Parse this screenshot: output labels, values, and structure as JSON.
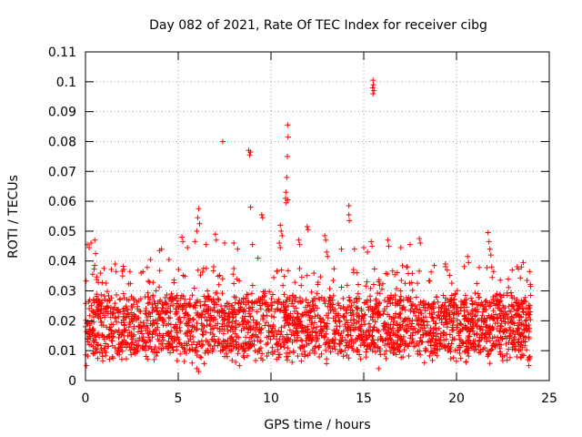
{
  "chart_data": {
    "type": "scatter",
    "title": "Day 082 of 2021, Rate Of TEC Index for receiver cibg",
    "xlabel": "GPS time / hours",
    "ylabel": "ROTI / TECUs",
    "xlim": [
      0,
      25
    ],
    "ylim": [
      0,
      0.11
    ],
    "x_ticks": [
      "0",
      "5",
      "10",
      "15",
      "20",
      "25"
    ],
    "y_ticks": [
      "0",
      "0.01",
      "0.02",
      "0.03",
      "0.04",
      "0.05",
      "0.06",
      "0.07",
      "0.08",
      "0.09",
      "0.1",
      "0.11"
    ],
    "x_tick_values": [
      0,
      5,
      10,
      15,
      20,
      25
    ],
    "y_tick_values": [
      0,
      0.01,
      0.02,
      0.03,
      0.04,
      0.05,
      0.06,
      0.07,
      0.08,
      0.09,
      0.1,
      0.11
    ],
    "grid": true,
    "marker": "+",
    "color": "#ff0000",
    "dense_band": {
      "x_start": 0,
      "x_end": 24,
      "typical_low": 0.007,
      "typical_high": 0.032,
      "center": 0.016
    },
    "series": [
      {
        "name": "ROTI",
        "points": [
          [
            7.4,
            0.08
          ],
          [
            8.8,
            0.077
          ],
          [
            8.85,
            0.0755
          ],
          [
            8.9,
            0.0765
          ],
          [
            10.9,
            0.0855
          ],
          [
            10.92,
            0.0815
          ],
          [
            10.88,
            0.075
          ],
          [
            10.85,
            0.068
          ],
          [
            10.8,
            0.063
          ],
          [
            10.78,
            0.061
          ],
          [
            10.9,
            0.0605
          ],
          [
            10.82,
            0.0595
          ],
          [
            15.5,
            0.1005
          ],
          [
            15.52,
            0.099
          ],
          [
            15.48,
            0.098
          ],
          [
            15.55,
            0.097
          ],
          [
            15.5,
            0.096
          ],
          [
            14.2,
            0.0585
          ],
          [
            14.2,
            0.0555
          ],
          [
            14.22,
            0.0535
          ],
          [
            8.9,
            0.058
          ],
          [
            9.5,
            0.0555
          ],
          [
            9.55,
            0.0545
          ],
          [
            6.1,
            0.0575
          ],
          [
            6.05,
            0.0545
          ],
          [
            6.15,
            0.0525
          ],
          [
            6.0,
            0.05
          ],
          [
            5.2,
            0.048
          ],
          [
            5.25,
            0.0465
          ],
          [
            7.0,
            0.049
          ],
          [
            7.05,
            0.047
          ],
          [
            10.5,
            0.052
          ],
          [
            10.55,
            0.05
          ],
          [
            10.6,
            0.0485
          ],
          [
            10.45,
            0.046
          ],
          [
            10.5,
            0.0445
          ],
          [
            11.5,
            0.047
          ],
          [
            11.55,
            0.0455
          ],
          [
            11.95,
            0.0515
          ],
          [
            12.0,
            0.0505
          ],
          [
            12.9,
            0.0485
          ],
          [
            12.95,
            0.047
          ],
          [
            13.0,
            0.043
          ],
          [
            13.05,
            0.0415
          ],
          [
            13.8,
            0.044
          ],
          [
            14.5,
            0.044
          ],
          [
            15.0,
            0.0445
          ],
          [
            15.2,
            0.043
          ],
          [
            15.4,
            0.0465
          ],
          [
            15.45,
            0.045
          ],
          [
            16.3,
            0.047
          ],
          [
            16.35,
            0.045
          ],
          [
            17.0,
            0.0445
          ],
          [
            17.5,
            0.0455
          ],
          [
            18.0,
            0.0475
          ],
          [
            18.05,
            0.046
          ],
          [
            21.7,
            0.0495
          ],
          [
            21.75,
            0.0465
          ],
          [
            21.8,
            0.044
          ],
          [
            21.85,
            0.042
          ],
          [
            21.9,
            0.038
          ],
          [
            22.0,
            0.0365
          ],
          [
            20.6,
            0.0415
          ],
          [
            20.65,
            0.0395
          ],
          [
            19.4,
            0.039
          ],
          [
            19.5,
            0.037
          ],
          [
            18.8,
            0.0385
          ],
          [
            23.0,
            0.037
          ],
          [
            23.5,
            0.038
          ],
          [
            23.6,
            0.0395
          ],
          [
            23.8,
            0.0335
          ],
          [
            0.1,
            0.0455
          ],
          [
            0.2,
            0.0445
          ],
          [
            0.3,
            0.046
          ],
          [
            0.5,
            0.047
          ],
          [
            0.55,
            0.0425
          ],
          [
            1.0,
            0.0375
          ],
          [
            1.6,
            0.039
          ],
          [
            1.65,
            0.0365
          ],
          [
            2.0,
            0.035
          ],
          [
            2.4,
            0.0365
          ],
          [
            3.0,
            0.036
          ],
          [
            3.5,
            0.0405
          ],
          [
            4.0,
            0.0435
          ],
          [
            4.1,
            0.044
          ],
          [
            4.5,
            0.0405
          ],
          [
            5.5,
            0.0445
          ],
          [
            5.9,
            0.0465
          ],
          [
            6.5,
            0.0455
          ],
          [
            7.5,
            0.046
          ],
          [
            8.0,
            0.046
          ],
          [
            8.2,
            0.044
          ],
          [
            9.0,
            0.0455
          ],
          [
            9.3,
            0.041
          ],
          [
            15.8,
            0.004
          ],
          [
            6.1,
            0.003
          ],
          [
            6.0,
            0.004
          ],
          [
            8.3,
            0.005
          ],
          [
            23.9,
            0.005
          ],
          [
            23.95,
            0.008
          ],
          [
            24.0,
            0.0315
          ],
          [
            24.0,
            0.0285
          ],
          [
            0.05,
            0.005
          ],
          [
            0.0,
            0.018
          ]
        ]
      }
    ]
  }
}
